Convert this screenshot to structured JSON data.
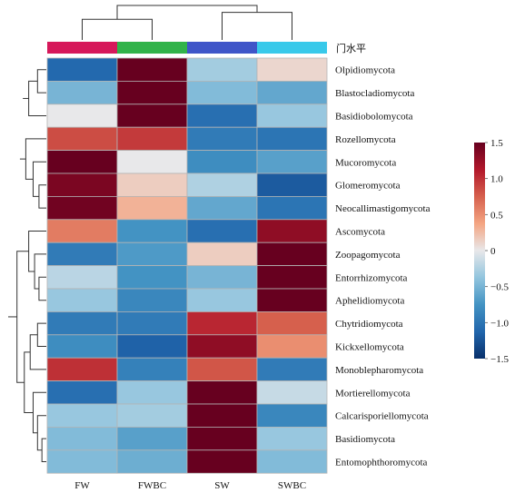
{
  "chart_data": {
    "type": "heatmap",
    "annotation_title": "门水平",
    "columns": [
      "FW",
      "FWBC",
      "SW",
      "SWBC"
    ],
    "column_colors": [
      "#d6185a",
      "#31b34a",
      "#3f55c8",
      "#38c9ea"
    ],
    "rows": [
      "Olpidiomycota",
      "Blastocladiomycota",
      "Basidiobolomycota",
      "Rozellomycota",
      "Mucoromycota",
      "Glomeromycota",
      "Neocallimastigomycota",
      "Ascomycota",
      "Zoopagomycota",
      "Entorrhizomycota",
      "Aphelidiomycota",
      "Chytridiomycota",
      "Kickxellomycota",
      "Monoblepharomycota",
      "Mortierellomycota",
      "Calcarisporiellomycota",
      "Basidiomycota",
      "Entomophthoromycota"
    ],
    "values": [
      [
        -1.1,
        1.5,
        -0.3,
        0.1
      ],
      [
        -0.5,
        1.6,
        -0.45,
        -0.6
      ],
      [
        0.0,
        1.55,
        -1.05,
        -0.35
      ],
      [
        0.85,
        0.95,
        -0.95,
        -1.0
      ],
      [
        1.55,
        0.0,
        -0.8,
        -0.65
      ],
      [
        1.4,
        0.15,
        -0.25,
        -1.2
      ],
      [
        1.45,
        0.3,
        -0.6,
        -1.0
      ],
      [
        0.6,
        -0.75,
        -1.05,
        1.3
      ],
      [
        -0.95,
        -0.7,
        0.15,
        1.55
      ],
      [
        -0.2,
        -0.75,
        -0.5,
        1.55
      ],
      [
        -0.35,
        -0.85,
        -0.35,
        1.6
      ],
      [
        -0.95,
        -0.95,
        1.05,
        0.75
      ],
      [
        -0.8,
        -1.15,
        1.3,
        0.5
      ],
      [
        1.0,
        -0.9,
        0.8,
        -0.95
      ],
      [
        -1.05,
        -0.35,
        1.55,
        -0.15
      ],
      [
        -0.35,
        -0.3,
        1.6,
        -0.85
      ],
      [
        -0.45,
        -0.65,
        1.6,
        -0.35
      ],
      [
        -0.45,
        -0.55,
        1.6,
        -0.45
      ]
    ],
    "color_scale": {
      "min": -1.5,
      "max": 1.5,
      "stops": [
        "#08306b",
        "#2166ac",
        "#4393c3",
        "#92c5de",
        "#e8e8ea",
        "#f4a582",
        "#d6604d",
        "#b2182b",
        "#67001f"
      ],
      "ticks": [
        1.5,
        1.0,
        0.5,
        0,
        -0.5,
        -1.0,
        -1.5
      ],
      "tick_labels": [
        "1.5",
        "1.0",
        "0.5",
        "0",
        "−0.5",
        "−1.0",
        "−1.5"
      ]
    },
    "row_dendrogram": [
      [
        1,
        2,
        0.06
      ],
      [
        19,
        3,
        0.12
      ],
      [
        20,
        0,
        0.16
      ],
      [
        6,
        7,
        0.05
      ],
      [
        22,
        5,
        0.09
      ],
      [
        23,
        4,
        0.14
      ],
      [
        24,
        21,
        0.18
      ],
      [
        10,
        11,
        0.05
      ],
      [
        26,
        9,
        0.08
      ],
      [
        27,
        8,
        0.12
      ],
      [
        13,
        12,
        0.06
      ],
      [
        29,
        14,
        0.11
      ],
      [
        17,
        18,
        0.03
      ],
      [
        31,
        16,
        0.06
      ],
      [
        32,
        15,
        0.09
      ],
      [
        33,
        30,
        0.15
      ],
      [
        28,
        34,
        0.2
      ],
      [
        35,
        25,
        0.26
      ]
    ],
    "column_dendrogram": [
      [
        1,
        2,
        0.6
      ],
      [
        3,
        4,
        0.8
      ],
      [
        5,
        6,
        1.0
      ]
    ]
  }
}
